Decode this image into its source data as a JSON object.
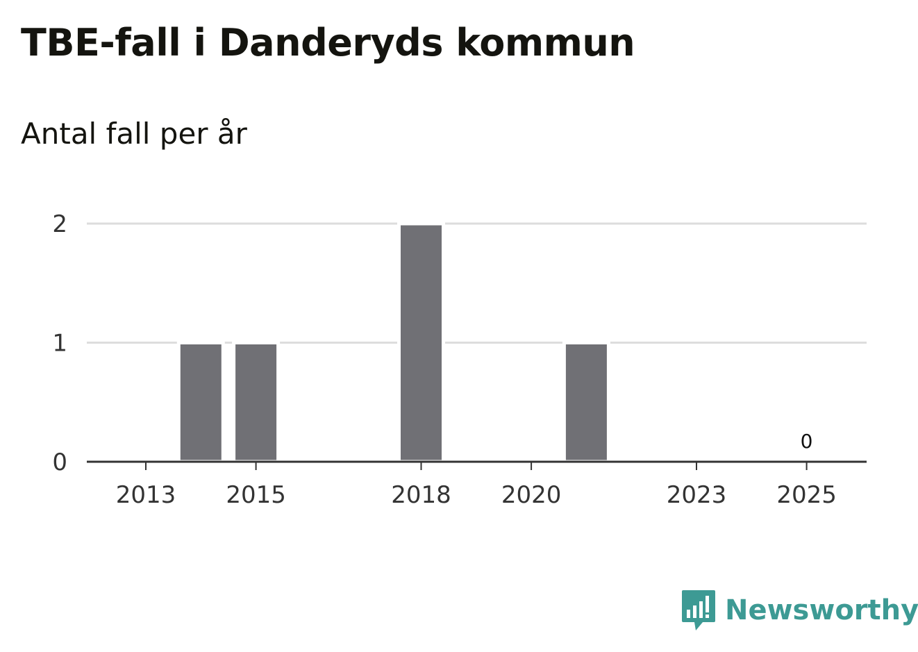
{
  "title": "TBE-fall i Danderyds kommun",
  "subtitle": "Antal fall per år",
  "chart_data": {
    "type": "bar",
    "title": "TBE-fall i Danderyds kommun",
    "subtitle": "Antal fall per år",
    "xlabel": "",
    "ylabel": "",
    "categories": [
      "2013",
      "2014",
      "2015",
      "2016",
      "2017",
      "2018",
      "2019",
      "2020",
      "2021",
      "2022",
      "2023",
      "2024",
      "2025"
    ],
    "values": [
      0,
      1,
      1,
      0,
      0,
      2,
      0,
      0,
      1,
      0,
      0,
      0,
      0
    ],
    "x_tick_labels": [
      "2013",
      "2015",
      "2018",
      "2020",
      "2023",
      "2025"
    ],
    "y_ticks": [
      0,
      1,
      2
    ],
    "ylim": [
      0,
      2
    ],
    "grid": true,
    "data_labels": [
      {
        "category": "2025",
        "text": "0"
      }
    ],
    "colors": {
      "bar": "#707075",
      "grid": "#dddddd",
      "axis": "#333333"
    }
  },
  "brand": {
    "name": "Newsworthy",
    "icon": "newsworthy-logo-icon",
    "color": "#3d9a94"
  }
}
